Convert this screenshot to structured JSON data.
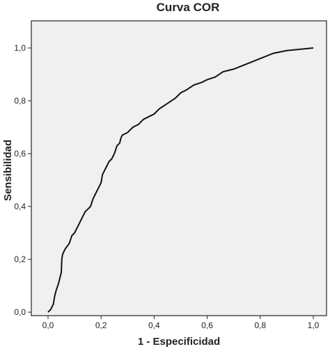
{
  "chart_data": {
    "type": "line",
    "title": "Curva COR",
    "xlabel": "1 - Especificidad",
    "ylabel": "Sensibilidad",
    "xlim": [
      0,
      1
    ],
    "ylim": [
      0,
      1
    ],
    "x_ticks": [
      "0,0",
      "0,2",
      "0,4",
      "0,6",
      "0,8",
      "1,0"
    ],
    "y_ticks": [
      "0,0",
      "0,2",
      "0,4",
      "0,6",
      "0,8",
      "1,0"
    ],
    "grid": false,
    "legend": "none",
    "colors": {
      "plot_background": "#f0f0f0",
      "line": "#111111",
      "frame": "#222222"
    },
    "series": [
      {
        "points": [
          [
            0.0,
            0.0
          ],
          [
            0.01,
            0.01
          ],
          [
            0.02,
            0.03
          ],
          [
            0.025,
            0.06
          ],
          [
            0.03,
            0.08
          ],
          [
            0.04,
            0.11
          ],
          [
            0.045,
            0.13
          ],
          [
            0.05,
            0.15
          ],
          [
            0.052,
            0.2
          ],
          [
            0.055,
            0.22
          ],
          [
            0.06,
            0.23
          ],
          [
            0.065,
            0.24
          ],
          [
            0.08,
            0.26
          ],
          [
            0.09,
            0.29
          ],
          [
            0.1,
            0.3
          ],
          [
            0.11,
            0.32
          ],
          [
            0.12,
            0.34
          ],
          [
            0.13,
            0.36
          ],
          [
            0.14,
            0.38
          ],
          [
            0.16,
            0.4
          ],
          [
            0.17,
            0.43
          ],
          [
            0.18,
            0.45
          ],
          [
            0.19,
            0.47
          ],
          [
            0.2,
            0.49
          ],
          [
            0.205,
            0.52
          ],
          [
            0.21,
            0.53
          ],
          [
            0.22,
            0.55
          ],
          [
            0.23,
            0.57
          ],
          [
            0.24,
            0.58
          ],
          [
            0.25,
            0.6
          ],
          [
            0.26,
            0.63
          ],
          [
            0.27,
            0.64
          ],
          [
            0.275,
            0.66
          ],
          [
            0.28,
            0.67
          ],
          [
            0.3,
            0.68
          ],
          [
            0.32,
            0.7
          ],
          [
            0.34,
            0.71
          ],
          [
            0.36,
            0.73
          ],
          [
            0.38,
            0.74
          ],
          [
            0.4,
            0.75
          ],
          [
            0.42,
            0.77
          ],
          [
            0.45,
            0.79
          ],
          [
            0.48,
            0.81
          ],
          [
            0.5,
            0.83
          ],
          [
            0.52,
            0.84
          ],
          [
            0.55,
            0.86
          ],
          [
            0.58,
            0.87
          ],
          [
            0.6,
            0.88
          ],
          [
            0.63,
            0.89
          ],
          [
            0.66,
            0.91
          ],
          [
            0.7,
            0.92
          ],
          [
            0.75,
            0.94
          ],
          [
            0.8,
            0.96
          ],
          [
            0.85,
            0.98
          ],
          [
            0.9,
            0.99
          ],
          [
            0.95,
            0.995
          ],
          [
            1.0,
            1.0
          ]
        ]
      }
    ]
  }
}
